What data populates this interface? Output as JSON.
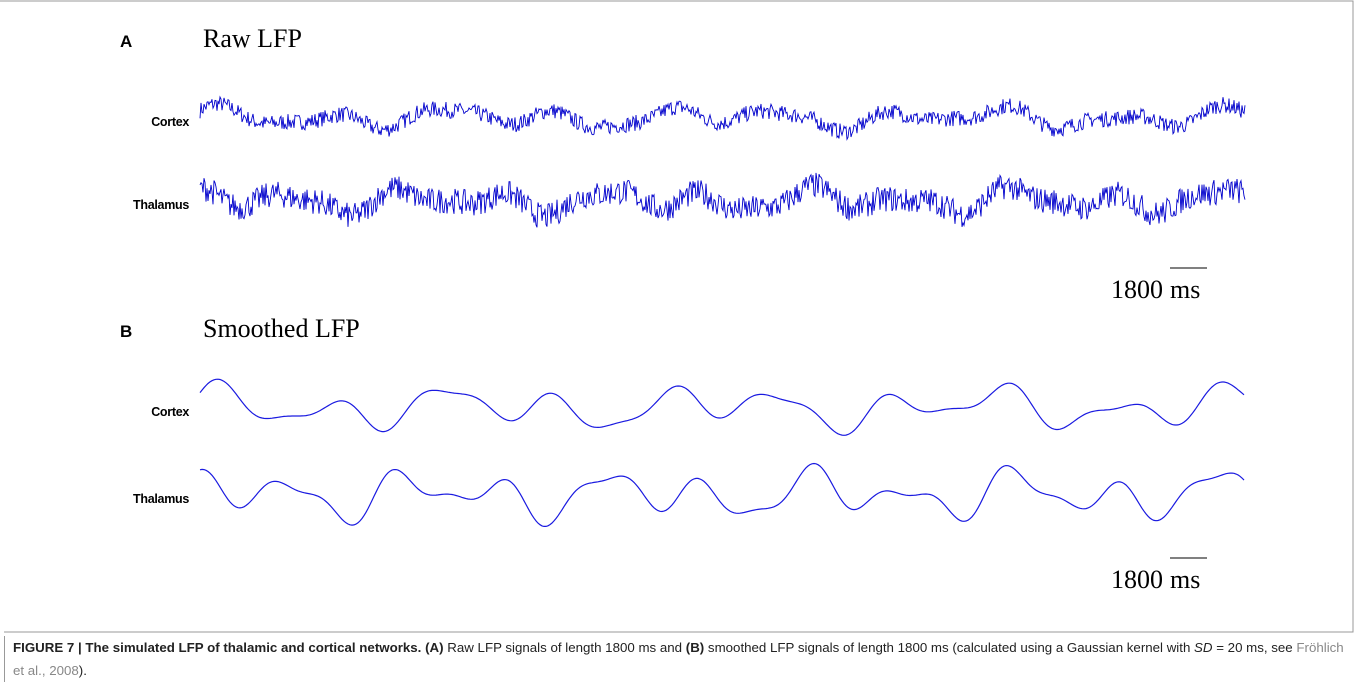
{
  "figure": {
    "panels": [
      {
        "label": "A",
        "title": "Raw LFP",
        "rows": [
          "Cortex",
          "Thalamus"
        ],
        "scale": "1800",
        "scale_unit": "ms"
      },
      {
        "label": "B",
        "title": "Smoothed LFP",
        "rows": [
          "Cortex",
          "Thalamus"
        ],
        "scale": "1800",
        "scale_unit": "ms"
      }
    ],
    "caption": {
      "figure_label": "FIGURE 7 | The simulated LFP of thalamic and cortical networks.",
      "part_a": "(A)",
      "text_a": " Raw LFP signals of length 1800 ms and ",
      "part_b": "(B)",
      "text_b": " smoothed LFP signals of length 1800 ms (calculated using a Gaussian kernel with ",
      "sd": "SD",
      "text_c": " = 20 ms, see ",
      "reference": "Fröhlich et al., 2008",
      "text_d": ")."
    }
  }
}
